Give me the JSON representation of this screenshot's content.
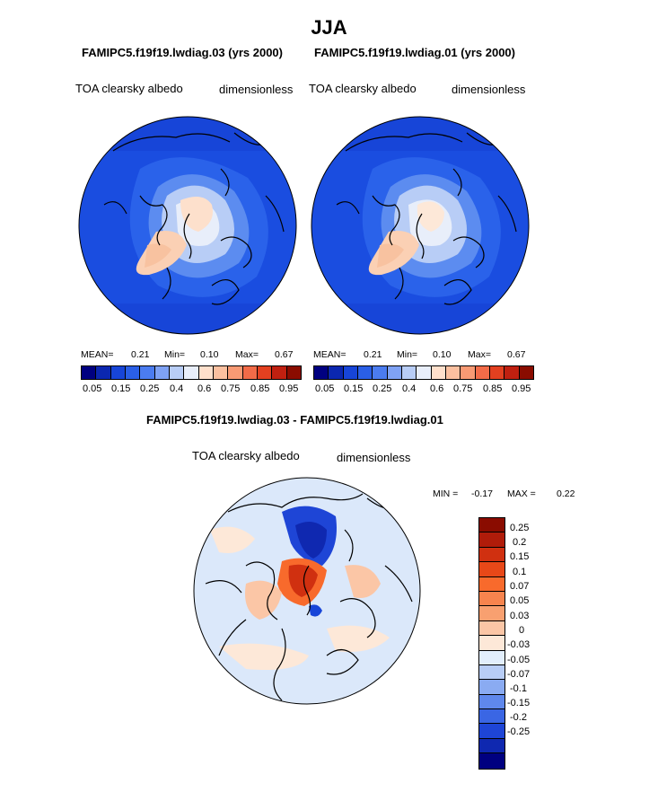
{
  "season": "JJA",
  "panels": [
    {
      "title": "FAMIPC5.f19f19.lwdiag.03 (yrs 2000)",
      "variable": "TOA clearsky albedo",
      "units": "dimensionless",
      "stats": {
        "mean_label": "MEAN=",
        "mean": "0.21",
        "min_label": "Min=",
        "min": "0.10",
        "max_label": "Max=",
        "max": "0.67"
      }
    },
    {
      "title": "FAMIPC5.f19f19.lwdiag.01 (yrs 2000)",
      "variable": "TOA clearsky albedo",
      "units": "dimensionless",
      "stats": {
        "mean_label": "MEAN=",
        "mean": "0.21",
        "min_label": "Min=",
        "min": "0.10",
        "max_label": "Max=",
        "max": "0.67"
      }
    }
  ],
  "colorbar": {
    "colors": [
      "#000080",
      "#0b27b0",
      "#1745d8",
      "#2a5fe6",
      "#4b7cf0",
      "#7fa2f4",
      "#b8cdf6",
      "#e8eefa",
      "#ffe0cc",
      "#fbc0a0",
      "#f89a74",
      "#f26b48",
      "#e34020",
      "#c02010",
      "#8a0c00"
    ],
    "tick_labels": [
      "0.05",
      "0.15",
      "0.25",
      "0.4",
      "0.6",
      "0.75",
      "0.85",
      "0.95"
    ]
  },
  "difference": {
    "title": "FAMIPC5.f19f19.lwdiag.03 - FAMIPC5.f19f19.lwdiag.01",
    "variable": "TOA clearsky albedo",
    "units": "dimensionless",
    "min_label": "MIN =",
    "min": "-0.17",
    "max_label": "MAX =",
    "max": "0.22",
    "colorbar": {
      "colors": [
        "#8a0c00",
        "#b01c0a",
        "#d03010",
        "#e84818",
        "#f86a2c",
        "#f7844e",
        "#f8a070",
        "#fbc6a6",
        "#fde8d8",
        "#e2eefc",
        "#b8cdf6",
        "#8aabf2",
        "#5f88ec",
        "#3a66e4",
        "#1e45d6",
        "#0f28b0",
        "#000080"
      ],
      "labels": [
        "0.25",
        "0.2",
        "0.15",
        "0.1",
        "0.07",
        "0.05",
        "0.03",
        "0",
        "-0.03",
        "-0.05",
        "-0.07",
        "-0.1",
        "-0.15",
        "-0.2",
        "-0.25"
      ]
    }
  }
}
